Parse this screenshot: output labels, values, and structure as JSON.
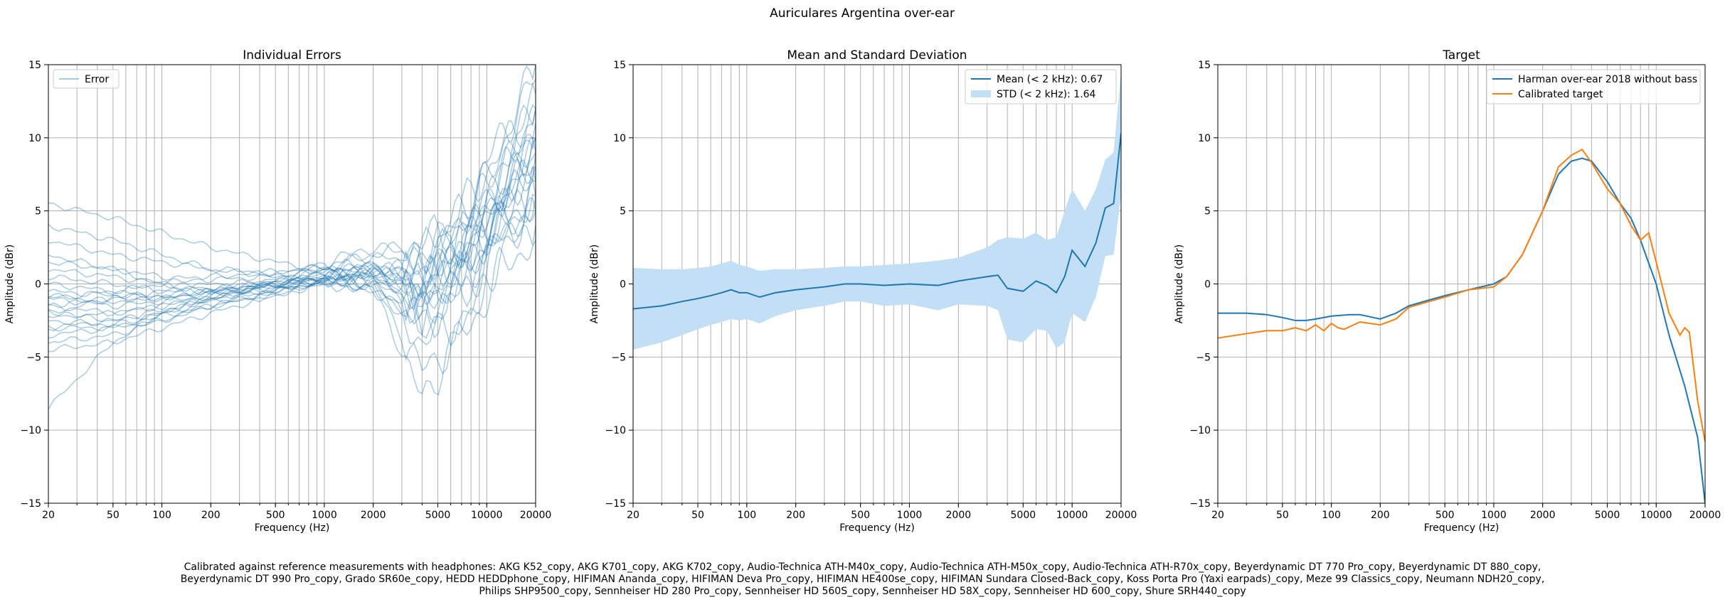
{
  "figure": {
    "suptitle": "Auriculares Argentina over-ear",
    "footer_lines": [
      "Calibrated against reference measurements with headphones: AKG K52_copy, AKG K701_copy, AKG K702_copy, Audio-Technica ATH-M40x_copy, Audio-Technica ATH-M50x_copy, Audio-Technica ATH-R70x_copy, Beyerdynamic DT 770 Pro_copy, Beyerdynamic DT 880_copy,",
      "Beyerdynamic DT 990 Pro_copy, Grado SR60e_copy, HEDD HEDDphone_copy, HIFIMAN Ananda_copy, HIFIMAN Deva Pro_copy, HIFIMAN HE400se_copy, HIFIMAN Sundara Closed-Back_copy, Koss Porta Pro (Yaxi earpads)_copy, Meze 99 Classics_copy, Neumann NDH20_copy,",
      "Philips SHP9500_copy, Sennheiser HD 280 Pro_copy, Sennheiser HD 560S_copy, Sennheiser HD 58X_copy, Sennheiser HD 600_copy, Shure SRH440_copy"
    ]
  },
  "chart_data": [
    {
      "type": "line",
      "title": "Individual Errors",
      "xlabel": "Frequency (Hz)",
      "ylabel": "Amplitude (dBr)",
      "xscale": "log",
      "xlim": [
        20,
        20000
      ],
      "ylim": [
        -15,
        15
      ],
      "xticks": [
        20,
        50,
        100,
        200,
        500,
        1000,
        2000,
        5000,
        10000,
        20000
      ],
      "yticks": [
        -15,
        -10,
        -5,
        0,
        5,
        10,
        15
      ],
      "grid": true,
      "legend": {
        "position": "top-left",
        "entries": [
          {
            "label": "Error",
            "color": "#1f77b4",
            "style": "line-faint"
          }
        ]
      },
      "series_color": "#1f77b4",
      "series_count": 24,
      "series_description_points_x": [
        20,
        50,
        100,
        200,
        500,
        1000,
        2000,
        4000,
        8000,
        12000,
        20000
      ],
      "series": [
        {
          "values": [
            5.5,
            4.5,
            3.5,
            2.5,
            1.5,
            1.0,
            0.5,
            0.0,
            2.0,
            5.0,
            9.0
          ]
        },
        {
          "values": [
            4.0,
            3.0,
            2.0,
            1.0,
            0.5,
            0.5,
            1.0,
            0.0,
            3.0,
            6.0,
            10.0
          ]
        },
        {
          "values": [
            3.0,
            2.0,
            1.5,
            1.0,
            0.8,
            1.2,
            2.0,
            1.0,
            4.0,
            7.0,
            12.0
          ]
        },
        {
          "values": [
            1.5,
            1.0,
            0.5,
            0.3,
            0.5,
            1.0,
            1.5,
            -1.0,
            2.0,
            4.0,
            6.0
          ]
        },
        {
          "values": [
            0.5,
            0.0,
            -0.5,
            -0.5,
            0.0,
            0.5,
            1.0,
            -2.0,
            1.0,
            3.0,
            5.0
          ]
        },
        {
          "values": [
            -0.5,
            -0.8,
            -0.8,
            -0.5,
            0.0,
            0.5,
            0.0,
            -3.0,
            0.0,
            5.0,
            8.0
          ]
        },
        {
          "values": [
            -1.0,
            -1.5,
            -1.2,
            -0.8,
            -0.3,
            0.3,
            0.5,
            1.0,
            3.0,
            6.0,
            9.0
          ]
        },
        {
          "values": [
            -1.5,
            -2.0,
            -1.5,
            -1.0,
            -0.5,
            0.0,
            0.8,
            2.0,
            5.0,
            8.0,
            12.0
          ]
        },
        {
          "values": [
            -2.0,
            -2.5,
            -2.0,
            -1.2,
            -0.5,
            0.2,
            1.0,
            -1.0,
            4.0,
            6.0,
            7.0
          ]
        },
        {
          "values": [
            -2.5,
            -2.8,
            -2.2,
            -1.5,
            -0.8,
            0.0,
            0.5,
            -4.0,
            -2.0,
            2.0,
            4.0
          ]
        },
        {
          "values": [
            -3.0,
            -3.0,
            -2.5,
            -1.5,
            -0.5,
            0.5,
            1.5,
            0.0,
            2.0,
            5.0,
            11.0
          ]
        },
        {
          "values": [
            -3.5,
            -3.0,
            -2.0,
            -1.0,
            0.0,
            0.8,
            1.0,
            -2.0,
            1.0,
            4.0,
            9.0
          ]
        },
        {
          "values": [
            -4.0,
            -3.5,
            -2.5,
            -1.5,
            -0.5,
            0.5,
            0.0,
            -6.0,
            -3.0,
            1.0,
            3.0
          ]
        },
        {
          "values": [
            -4.5,
            -4.0,
            -3.0,
            -2.0,
            -0.8,
            0.2,
            -0.5,
            -3.0,
            0.0,
            3.0,
            6.0
          ]
        },
        {
          "values": [
            -8.5,
            -4.0,
            -2.0,
            -1.0,
            0.0,
            0.5,
            0.8,
            1.5,
            6.0,
            10.0,
            14.0
          ]
        },
        {
          "values": [
            -1.0,
            -0.5,
            0.0,
            0.5,
            0.8,
            1.0,
            0.5,
            -1.0,
            3.0,
            7.0,
            13.0
          ]
        },
        {
          "values": [
            0.0,
            -0.5,
            -1.0,
            -0.5,
            0.2,
            0.8,
            1.2,
            0.5,
            5.0,
            9.0,
            15.0
          ]
        },
        {
          "values": [
            -2.0,
            -1.0,
            -0.5,
            0.0,
            0.2,
            0.0,
            -0.5,
            -2.0,
            2.0,
            6.0,
            8.0
          ]
        },
        {
          "values": [
            2.0,
            1.0,
            0.0,
            -0.5,
            -0.3,
            0.0,
            0.2,
            -0.5,
            3.5,
            8.0,
            10.0
          ]
        },
        {
          "values": [
            -1.5,
            -1.0,
            -1.0,
            -0.5,
            0.3,
            1.0,
            2.0,
            3.0,
            4.0,
            5.0,
            6.0
          ]
        },
        {
          "values": [
            -3.0,
            -2.5,
            -1.8,
            -1.0,
            0.0,
            1.5,
            2.5,
            2.0,
            6.0,
            9.0,
            12.0
          ]
        },
        {
          "values": [
            1.0,
            0.5,
            0.0,
            -0.3,
            0.0,
            0.3,
            0.0,
            -1.5,
            1.5,
            4.0,
            5.0
          ]
        },
        {
          "values": [
            -2.2,
            -2.0,
            -1.5,
            -0.8,
            -0.2,
            0.2,
            -0.2,
            -8.0,
            -2.0,
            3.0,
            7.0
          ]
        },
        {
          "values": [
            -0.8,
            -1.2,
            -1.0,
            -0.6,
            -0.1,
            0.4,
            0.6,
            0.0,
            2.5,
            5.5,
            10.0
          ]
        }
      ]
    },
    {
      "type": "line",
      "title": "Mean and Standard Deviation",
      "xlabel": "Frequency (Hz)",
      "ylabel": "Amplitude (dBr)",
      "xscale": "log",
      "xlim": [
        20,
        20000
      ],
      "ylim": [
        -15,
        15
      ],
      "xticks": [
        20,
        50,
        100,
        200,
        500,
        1000,
        2000,
        5000,
        10000,
        20000
      ],
      "yticks": [
        -15,
        -10,
        -5,
        0,
        5,
        10,
        15
      ],
      "grid": true,
      "legend": {
        "position": "top-right",
        "entries": [
          {
            "label": "Mean (< 2 kHz): 0.67",
            "color": "#1f77b4",
            "style": "line"
          },
          {
            "label": "STD (< 2 kHz): 1.64",
            "color": "#c3dff5",
            "style": "patch"
          }
        ]
      },
      "x": [
        20,
        30,
        40,
        50,
        60,
        70,
        80,
        90,
        100,
        120,
        150,
        200,
        300,
        400,
        500,
        700,
        1000,
        1500,
        2000,
        3000,
        3500,
        4000,
        5000,
        6000,
        7000,
        8000,
        9000,
        10000,
        12000,
        14000,
        16000,
        18000,
        20000
      ],
      "mean": [
        -1.7,
        -1.5,
        -1.2,
        -1.0,
        -0.8,
        -0.6,
        -0.4,
        -0.6,
        -0.6,
        -0.9,
        -0.6,
        -0.4,
        -0.2,
        0.0,
        0.0,
        -0.1,
        0.0,
        -0.1,
        0.2,
        0.5,
        0.6,
        -0.3,
        -0.5,
        0.2,
        -0.1,
        -0.6,
        0.5,
        2.3,
        1.2,
        2.8,
        5.2,
        5.5,
        10.3
      ],
      "std_upper": [
        1.1,
        1.0,
        1.0,
        1.1,
        1.2,
        1.4,
        1.6,
        1.3,
        1.2,
        0.9,
        1.0,
        1.0,
        1.1,
        1.2,
        1.2,
        1.3,
        1.4,
        1.6,
        1.8,
        2.5,
        3.0,
        3.2,
        3.1,
        3.5,
        3.0,
        3.2,
        5.0,
        6.5,
        5.0,
        6.5,
        8.5,
        9.0,
        14.5
      ],
      "std_lower": [
        -4.5,
        -4.0,
        -3.5,
        -3.1,
        -2.8,
        -2.6,
        -2.4,
        -2.5,
        -2.4,
        -2.7,
        -2.2,
        -1.8,
        -1.5,
        -1.2,
        -1.2,
        -1.5,
        -1.4,
        -1.8,
        -1.4,
        -1.5,
        -1.8,
        -3.8,
        -4.0,
        -3.1,
        -3.2,
        -4.4,
        -4.0,
        -2.0,
        -2.6,
        -0.9,
        1.9,
        2.0,
        6.1
      ]
    },
    {
      "type": "line",
      "title": "Target",
      "xlabel": "Frequency (Hz)",
      "ylabel": "Amplitude (dBr)",
      "xscale": "log",
      "xlim": [
        20,
        20000
      ],
      "ylim": [
        -15,
        15
      ],
      "xticks": [
        20,
        50,
        100,
        200,
        500,
        1000,
        2000,
        5000,
        10000,
        20000
      ],
      "yticks": [
        -15,
        -10,
        -5,
        0,
        5,
        10,
        15
      ],
      "grid": true,
      "legend": {
        "position": "top-right"
      },
      "series": [
        {
          "name": "Harman over-ear 2018 without bass",
          "color": "#1f77b4",
          "x": [
            20,
            30,
            40,
            50,
            60,
            70,
            80,
            100,
            130,
            150,
            200,
            250,
            300,
            400,
            500,
            700,
            1000,
            1200,
            1500,
            2000,
            2500,
            3000,
            3500,
            4000,
            5000,
            6000,
            7000,
            8000,
            10000,
            12000,
            15000,
            18000,
            20000
          ],
          "values": [
            -2.0,
            -2.0,
            -2.1,
            -2.3,
            -2.5,
            -2.5,
            -2.4,
            -2.2,
            -2.1,
            -2.1,
            -2.4,
            -2.0,
            -1.5,
            -1.1,
            -0.8,
            -0.4,
            0.0,
            0.5,
            2.0,
            5.0,
            7.5,
            8.4,
            8.6,
            8.4,
            7.0,
            5.5,
            4.5,
            3.0,
            0.0,
            -3.5,
            -7.0,
            -10.5,
            -15.0
          ]
        },
        {
          "name": "Calibrated target",
          "color": "#ff7f0e",
          "x": [
            20,
            30,
            40,
            50,
            60,
            70,
            80,
            90,
            100,
            110,
            120,
            150,
            200,
            250,
            300,
            400,
            500,
            700,
            1000,
            1200,
            1500,
            2000,
            2500,
            3000,
            3500,
            4000,
            5000,
            6000,
            7000,
            8000,
            9000,
            10000,
            12000,
            14000,
            15000,
            16000,
            18000,
            20000
          ],
          "values": [
            -3.7,
            -3.4,
            -3.2,
            -3.2,
            -3.0,
            -3.2,
            -2.8,
            -3.2,
            -2.7,
            -3.0,
            -3.1,
            -2.6,
            -2.8,
            -2.4,
            -1.6,
            -1.2,
            -0.9,
            -0.4,
            -0.2,
            0.5,
            2.0,
            5.0,
            8.0,
            8.8,
            9.2,
            8.3,
            6.5,
            5.5,
            4.0,
            3.0,
            3.5,
            1.5,
            -2.0,
            -3.5,
            -3.0,
            -3.3,
            -8.0,
            -10.8
          ]
        }
      ]
    }
  ]
}
